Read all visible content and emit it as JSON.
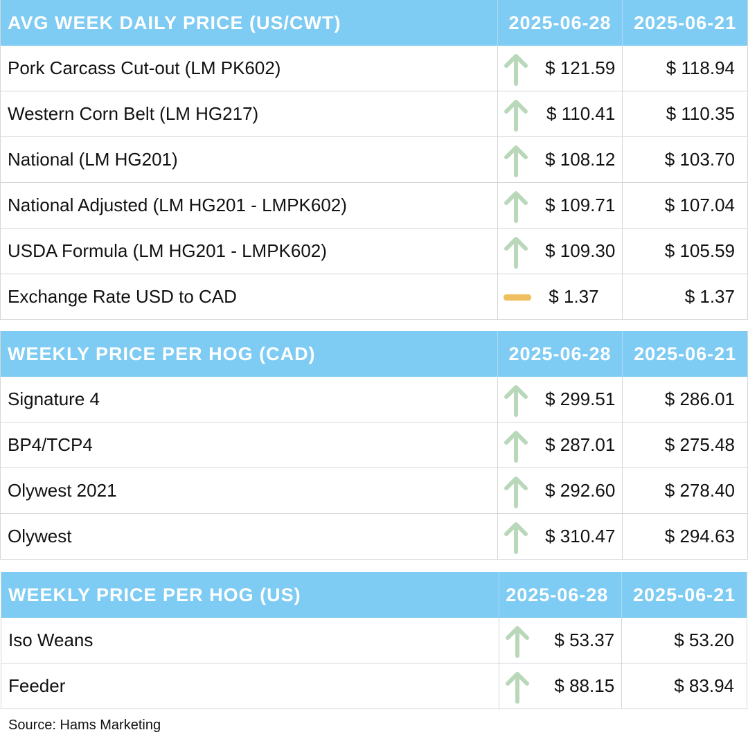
{
  "tables": [
    {
      "header": {
        "label": "AVG WEEK DAILY PRICE (US/CWT)",
        "col_current": "2025-06-28",
        "col_previous": "2025-06-21"
      },
      "rows": [
        {
          "label": "Pork Carcass Cut-out (LM PK602)",
          "current": "$ 121.59",
          "previous": "$ 118.94",
          "trend": "up"
        },
        {
          "label": "Western Corn Belt (LM HG217)",
          "current": "$ 110.41",
          "previous": "$ 110.35",
          "trend": "up"
        },
        {
          "label": "National (LM HG201)",
          "current": "$ 108.12",
          "previous": "$ 103.70",
          "trend": "up"
        },
        {
          "label": "National Adjusted (LM HG201 - LMPK602)",
          "current": "$ 109.71",
          "previous": "$ 107.04",
          "trend": "up"
        },
        {
          "label": "USDA Formula (LM HG201 - LMPK602)",
          "current": "$ 109.30",
          "previous": "$ 105.59",
          "trend": "up"
        },
        {
          "label": "Exchange Rate USD to CAD",
          "current": "$ 1.37",
          "previous": "$ 1.37",
          "trend": "flat"
        }
      ]
    },
    {
      "header": {
        "label": "WEEKLY PRICE PER HOG (CAD)",
        "col_current": "2025-06-28",
        "col_previous": "2025-06-21"
      },
      "rows": [
        {
          "label": "Signature 4",
          "current": "$ 299.51",
          "previous": "$ 286.01",
          "trend": "up"
        },
        {
          "label": "BP4/TCP4",
          "current": "$ 287.01",
          "previous": "$ 275.48",
          "trend": "up"
        },
        {
          "label": "Olywest 2021",
          "current": "$ 292.60",
          "previous": "$ 278.40",
          "trend": "up"
        },
        {
          "label": "Olywest",
          "current": "$ 310.47",
          "previous": "$ 294.63",
          "trend": "up"
        }
      ]
    },
    {
      "header": {
        "label": "WEEKLY PRICE PER HOG (US)",
        "col_current": "2025-06-28",
        "col_previous": "2025-06-21"
      },
      "rows": [
        {
          "label": "Iso Weans",
          "current": "$ 53.37",
          "previous": "$ 53.20",
          "trend": "up"
        },
        {
          "label": "Feeder",
          "current": "$ 88.15",
          "previous": "$ 83.94",
          "trend": "up"
        }
      ]
    }
  ],
  "source": "Source: Hams Marketing",
  "colors": {
    "header_bg": "#7ecbf3",
    "up_arrow": "#b9d8b9",
    "flat_dash": "#f0c060"
  },
  "icons": {
    "up": "up-arrow-icon",
    "flat": "flat-dash-icon"
  }
}
